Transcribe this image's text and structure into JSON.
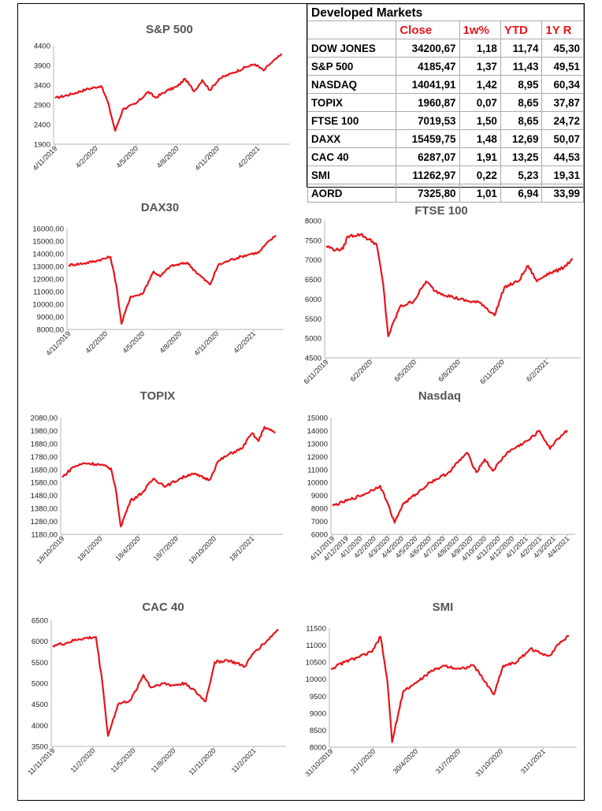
{
  "table": {
    "title": "Developed Markets",
    "headers": [
      "",
      "Close",
      "1w%",
      "YTD",
      "1Y R"
    ],
    "rows": [
      [
        "DOW JONES",
        "34200,67",
        "1,18",
        "11,74",
        "45,30"
      ],
      [
        "S&P 500",
        "4185,47",
        "1,37",
        "11,43",
        "49,51"
      ],
      [
        "NASDAQ",
        "14041,91",
        "1,42",
        "8,95",
        "60,34"
      ],
      [
        "TOPIX",
        "1960,87",
        "0,07",
        "8,65",
        "37,87"
      ],
      [
        "FTSE 100",
        "7019,53",
        "1,50",
        "8,65",
        "24,72"
      ],
      [
        "DAXX",
        "15459,75",
        "1,48",
        "12,69",
        "50,07"
      ],
      [
        "CAC 40",
        "6287,07",
        "1,91",
        "13,25",
        "44,53"
      ],
      [
        "SMI",
        "11262,97",
        "0,22",
        "5,23",
        "19,31"
      ],
      [
        "AORD",
        "7325,80",
        "1,01",
        "6,94",
        "33,99"
      ]
    ]
  },
  "colors": {
    "line": "#e8141b",
    "header": "#e8141b"
  },
  "chart_data": [
    {
      "id": "sp500",
      "type": "line",
      "title": "S&P 500",
      "ylim": [
        1900,
        4400
      ],
      "yticks": [
        "1900",
        "2400",
        "2900",
        "3400",
        "3900",
        "4400"
      ],
      "xticks": [
        "4/11/2019",
        "4/2/2020",
        "4/5/2020",
        "4/8/2020",
        "4/11/2020",
        "4/2/2021"
      ],
      "x": [
        "2019-11-04",
        "2019-12-15",
        "2020-01-15",
        "2020-02-19",
        "2020-03-05",
        "2020-03-23",
        "2020-04-10",
        "2020-05-10",
        "2020-06-08",
        "2020-06-25",
        "2020-07-20",
        "2020-08-15",
        "2020-09-02",
        "2020-09-23",
        "2020-10-12",
        "2020-10-30",
        "2020-11-20",
        "2020-12-20",
        "2021-01-20",
        "2021-02-12",
        "2021-03-04",
        "2021-03-20",
        "2021-04-16"
      ],
      "y": [
        3070,
        3180,
        3290,
        3380,
        3000,
        2240,
        2790,
        2930,
        3230,
        3080,
        3250,
        3370,
        3560,
        3240,
        3530,
        3270,
        3560,
        3700,
        3850,
        3930,
        3770,
        3950,
        4185
      ]
    },
    {
      "id": "dax30",
      "type": "line",
      "title": "DAX30",
      "ylim": [
        8000,
        16000
      ],
      "yticks": [
        "8000,00",
        "9000,00",
        "10000,00",
        "11000,00",
        "12000,00",
        "13000,00",
        "14000,00",
        "15000,00",
        "16000,00"
      ],
      "xticks": [
        "4/11/2019",
        "4/2/2020",
        "4/5/2020",
        "4/8/2020",
        "4/11/2020",
        "4/2/2021"
      ],
      "x": [
        "2019-11-04",
        "2019-12-15",
        "2020-01-15",
        "2020-02-19",
        "2020-03-05",
        "2020-03-18",
        "2020-04-10",
        "2020-05-10",
        "2020-06-08",
        "2020-06-25",
        "2020-07-20",
        "2020-09-02",
        "2020-09-23",
        "2020-10-30",
        "2020-11-20",
        "2020-12-20",
        "2021-01-20",
        "2021-02-12",
        "2021-03-04",
        "2021-03-20",
        "2021-04-16"
      ],
      "y": [
        13100,
        13250,
        13450,
        13750,
        11500,
        8450,
        10600,
        10800,
        12600,
        12200,
        13000,
        13300,
        12600,
        11550,
        13100,
        13500,
        13800,
        14000,
        14100,
        14700,
        15460
      ]
    },
    {
      "id": "ftse100",
      "type": "line",
      "title": "FTSE 100",
      "ylim": [
        4500,
        8000
      ],
      "yticks": [
        "4500",
        "5000",
        "5500",
        "6000",
        "6500",
        "7000",
        "7500",
        "8000"
      ],
      "xticks": [
        "6/11/2019",
        "6/2/2020",
        "6/5/2020",
        "6/8/2020",
        "6/11/2020",
        "6/2/2021"
      ],
      "x": [
        "2019-11-04",
        "2019-11-25",
        "2019-12-10",
        "2019-12-20",
        "2020-01-17",
        "2020-02-20",
        "2020-03-05",
        "2020-03-16",
        "2020-04-10",
        "2020-05-10",
        "2020-06-05",
        "2020-06-25",
        "2020-08-01",
        "2020-09-01",
        "2020-10-01",
        "2020-10-30",
        "2020-11-20",
        "2020-12-20",
        "2021-01-10",
        "2021-01-29",
        "2021-02-20",
        "2021-03-20",
        "2021-04-16"
      ],
      "y": [
        7350,
        7250,
        7280,
        7600,
        7650,
        7400,
        6400,
        5050,
        5800,
        5950,
        6450,
        6200,
        6050,
        5950,
        5900,
        5580,
        6300,
        6450,
        6850,
        6450,
        6650,
        6750,
        7020
      ]
    },
    {
      "id": "topix",
      "type": "line",
      "title": "TOPIX",
      "ylim": [
        1180,
        2080
      ],
      "yticks": [
        "1180,00",
        "1280,00",
        "1380,00",
        "1480,00",
        "1580,00",
        "1680,00",
        "1780,00",
        "1880,00",
        "1980,00",
        "2080,00"
      ],
      "xticks": [
        "18/10/2019",
        "18/1/2020",
        "18/4/2020",
        "18/7/2020",
        "18/10/2020",
        "18/1/2021"
      ],
      "x": [
        "2019-10-18",
        "2019-11-15",
        "2019-12-15",
        "2020-01-20",
        "2020-02-20",
        "2020-03-05",
        "2020-03-16",
        "2020-04-10",
        "2020-05-10",
        "2020-06-08",
        "2020-07-10",
        "2020-08-15",
        "2020-09-15",
        "2020-10-30",
        "2020-11-20",
        "2020-12-20",
        "2021-01-20",
        "2021-02-16",
        "2021-03-05",
        "2021-03-20",
        "2021-04-16"
      ],
      "y": [
        1620,
        1700,
        1730,
        1720,
        1690,
        1500,
        1240,
        1440,
        1500,
        1610,
        1550,
        1610,
        1650,
        1600,
        1740,
        1800,
        1840,
        1960,
        1900,
        2010,
        1961
      ]
    },
    {
      "id": "nasdaq",
      "type": "line",
      "title": "Nasdaq",
      "ylim": [
        6000,
        15000
      ],
      "yticks": [
        "6000",
        "7000",
        "8000",
        "9000",
        "10000",
        "11000",
        "12000",
        "13000",
        "14000",
        "15000"
      ],
      "xticks": [
        "4/11/2019",
        "4/12/2019",
        "4/1/2020",
        "4/2/2020",
        "4/3/2020",
        "4/4/2020",
        "4/5/2020",
        "4/6/2020",
        "4/7/2020",
        "4/8/2020",
        "4/9/2020",
        "4/10/2020",
        "4/11/2020",
        "4/12/2020",
        "4/1/2021",
        "4/2/2021",
        "4/3/2021",
        "4/4/2021"
      ],
      "x": [
        "2019-11-04",
        "2019-12-15",
        "2020-01-15",
        "2020-02-19",
        "2020-03-05",
        "2020-03-23",
        "2020-04-10",
        "2020-05-10",
        "2020-06-10",
        "2020-07-20",
        "2020-09-02",
        "2020-09-23",
        "2020-10-12",
        "2020-10-30",
        "2020-12-01",
        "2021-01-20",
        "2021-02-12",
        "2021-03-08",
        "2021-03-20",
        "2021-04-16"
      ],
      "y": [
        8200,
        8700,
        9100,
        9750,
        8600,
        6900,
        8300,
        9100,
        10000,
        10700,
        12300,
        10800,
        11800,
        10900,
        12300,
        13300,
        14000,
        12600,
        13200,
        14042
      ]
    },
    {
      "id": "cac40",
      "type": "line",
      "title": "CAC 40",
      "ylim": [
        3500,
        6500
      ],
      "yticks": [
        "3500",
        "4000",
        "4500",
        "5000",
        "5500",
        "6000",
        "6500"
      ],
      "xticks": [
        "11/11/2019",
        "11/2/2020",
        "11/5/2020",
        "11/8/2020",
        "11/11/2020",
        "11/2/2021"
      ],
      "x": [
        "2019-11-11",
        "2019-12-10",
        "2020-01-10",
        "2020-02-19",
        "2020-03-05",
        "2020-03-18",
        "2020-04-10",
        "2020-05-10",
        "2020-06-08",
        "2020-06-25",
        "2020-07-20",
        "2020-08-15",
        "2020-09-15",
        "2020-10-30",
        "2020-11-20",
        "2020-12-20",
        "2021-01-29",
        "2021-02-20",
        "2021-03-20",
        "2021-04-16"
      ],
      "y": [
        5900,
        5950,
        6050,
        6100,
        5000,
        3750,
        4500,
        4600,
        5200,
        4900,
        5000,
        4950,
        5000,
        4570,
        5500,
        5550,
        5400,
        5750,
        6000,
        6287
      ]
    },
    {
      "id": "smi",
      "type": "line",
      "title": "SMI",
      "ylim": [
        8000,
        11500
      ],
      "yticks": [
        "8000",
        "8500",
        "9000",
        "9500",
        "10000",
        "10500",
        "11000",
        "11500"
      ],
      "xticks": [
        "31/10/2019",
        "31/1/2020",
        "30/4/2020",
        "31/7/2020",
        "31/10/2020",
        "31/1/2021"
      ],
      "x": [
        "2019-10-31",
        "2019-11-30",
        "2019-12-31",
        "2020-01-31",
        "2020-02-19",
        "2020-03-05",
        "2020-03-16",
        "2020-04-10",
        "2020-05-10",
        "2020-06-08",
        "2020-07-10",
        "2020-08-15",
        "2020-09-15",
        "2020-10-30",
        "2020-11-20",
        "2020-12-20",
        "2021-01-20",
        "2021-02-12",
        "2021-03-05",
        "2021-03-20",
        "2021-04-16"
      ],
      "y": [
        10300,
        10500,
        10650,
        10800,
        11250,
        10000,
        8150,
        9650,
        9900,
        10200,
        10400,
        10300,
        10400,
        9550,
        10400,
        10500,
        10900,
        10750,
        10700,
        11000,
        11263
      ]
    }
  ]
}
